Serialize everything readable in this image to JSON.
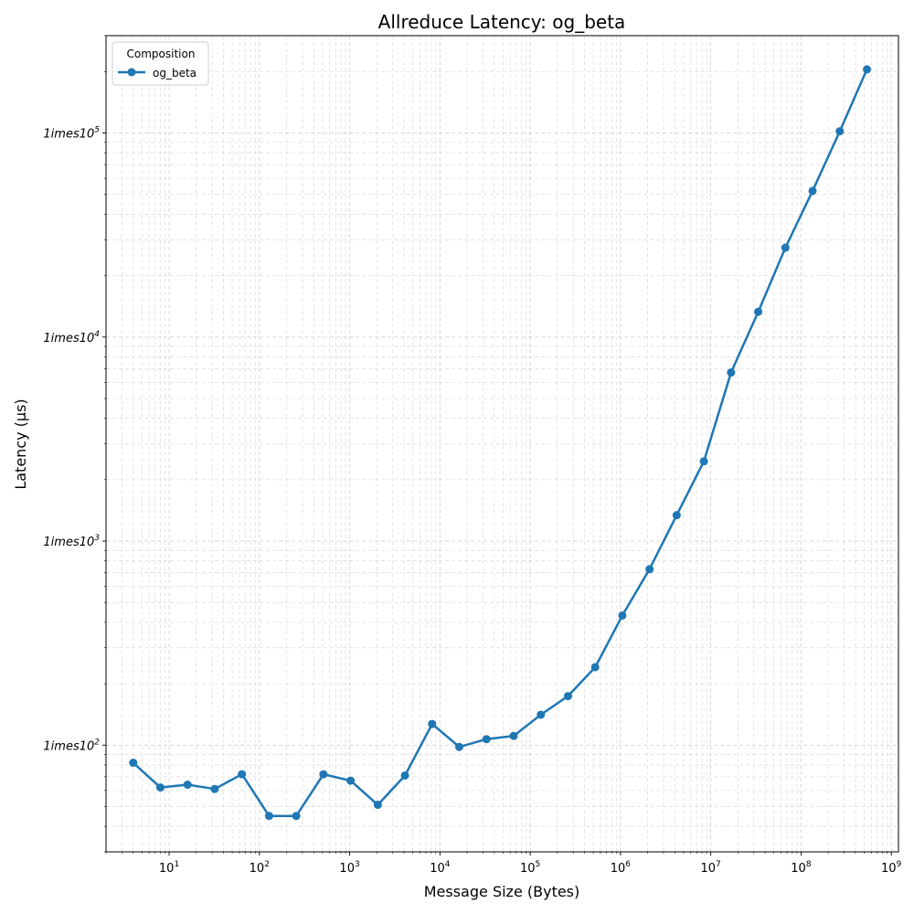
{
  "chart_data": {
    "type": "line",
    "title": "Allreduce Latency: og_beta",
    "xlabel": "Message Size (Bytes)",
    "ylabel": "Latency (µs)",
    "xscale": "log",
    "yscale": "log",
    "xlim": [
      2,
      1200000000
    ],
    "ylim": [
      30,
      300000
    ],
    "grid": true,
    "x_ticks": [
      {
        "value": 10,
        "base": "10",
        "exp": "1"
      },
      {
        "value": 100,
        "base": "10",
        "exp": "2"
      },
      {
        "value": 1000,
        "base": "10",
        "exp": "3"
      },
      {
        "value": 10000,
        "base": "10",
        "exp": "4"
      },
      {
        "value": 100000,
        "base": "10",
        "exp": "5"
      },
      {
        "value": 1000000,
        "base": "10",
        "exp": "6"
      },
      {
        "value": 10000000,
        "base": "10",
        "exp": "7"
      },
      {
        "value": 100000000,
        "base": "10",
        "exp": "8"
      },
      {
        "value": 1000000000,
        "base": "10",
        "exp": "9"
      }
    ],
    "y_ticks": [
      {
        "value": 100,
        "label": "1imes10",
        "exp": "2"
      },
      {
        "value": 1000,
        "label": "1imes10",
        "exp": "3"
      },
      {
        "value": 10000,
        "label": "1imes10",
        "exp": "4"
      },
      {
        "value": 100000,
        "label": "1imes10",
        "exp": "5"
      }
    ],
    "legend": {
      "title": "Composition",
      "position": "top-left"
    },
    "series": [
      {
        "name": "og_beta",
        "color": "#1f77b4",
        "x": [
          4,
          8,
          16,
          32,
          64,
          128,
          256,
          512,
          1024,
          2048,
          4096,
          8192,
          16384,
          32768,
          65536,
          131072,
          262144,
          524288,
          1048576,
          2097152,
          4194304,
          8388608,
          16777216,
          33554432,
          67108864,
          134217728,
          268435456,
          536870912
        ],
        "y": [
          82,
          62,
          64,
          61,
          72,
          45,
          45,
          72,
          67,
          51,
          71,
          127,
          98,
          107,
          111,
          141,
          174,
          241,
          432,
          728,
          1340,
          2460,
          6700,
          13300,
          27400,
          52000,
          102000,
          205000
        ]
      }
    ]
  }
}
